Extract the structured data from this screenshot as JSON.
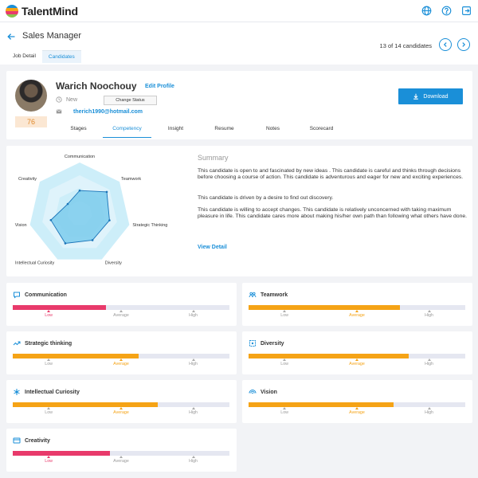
{
  "app": {
    "name": "TalentMind"
  },
  "header": {
    "title": "Sales Manager",
    "tabs": [
      "Job Detail",
      "Candidates"
    ],
    "active_tab": 1,
    "candidate_counter": "13 of 14 candidates"
  },
  "candidate": {
    "name": "Warich Noochouy",
    "edit_label": "Edit Profile",
    "status": "New",
    "change_status_label": "Change Status",
    "email": "therich1990@hotmail.com",
    "score": "76",
    "download_label": "Download"
  },
  "sub_tabs": [
    "Stages",
    "Competency",
    "Insight",
    "Resume",
    "Notes",
    "Scorecard"
  ],
  "active_sub_tab": 1,
  "radar": {
    "axes": [
      "Communication",
      "Teamwork",
      "Strategic Thinking",
      "Diversity",
      "Intellectual Curiosity",
      "Vision",
      "Creativity"
    ],
    "values": [
      0.45,
      0.68,
      0.6,
      0.58,
      0.65,
      0.58,
      0.3
    ],
    "max": 1
  },
  "summary": {
    "title": "Summary",
    "paragraphs": [
      "This candidate is open to and fascinated by new ideas . This candidate is careful and thinks through decisions before choosing a course of action. This candidate is adventurous and eager for new and exciting experiences.",
      "This candidate is driven by a desire to find out discovery.",
      "This candidate is willing to accept changes. This candidate is relatively unconcerned with taking maximum pleasure in life. This candidate cares more about making his/her own path than following what others have done."
    ],
    "view_detail_label": "View Detail"
  },
  "scale_labels": [
    "Low",
    "Average",
    "High"
  ],
  "colors": {
    "low": "#e83a6b",
    "average": "#f5a316",
    "accent": "#1a8fd8"
  },
  "metrics": [
    {
      "title": "Communication",
      "icon": "chat-icon",
      "level": "Low",
      "fill": 0.43
    },
    {
      "title": "Teamwork",
      "icon": "team-icon",
      "level": "Average",
      "fill": 0.7
    },
    {
      "title": "Strategic thinking",
      "icon": "trend-icon",
      "level": "Average",
      "fill": 0.58
    },
    {
      "title": "Diversity",
      "icon": "diversity-icon",
      "level": "Average",
      "fill": 0.74
    },
    {
      "title": "Intellectual Curiosity",
      "icon": "snowflake-icon",
      "level": "Average",
      "fill": 0.67
    },
    {
      "title": "Vision",
      "icon": "vision-icon",
      "level": "Average",
      "fill": 0.67
    },
    {
      "title": "Creativity",
      "icon": "creativity-icon",
      "level": "Low",
      "fill": 0.45
    }
  ]
}
